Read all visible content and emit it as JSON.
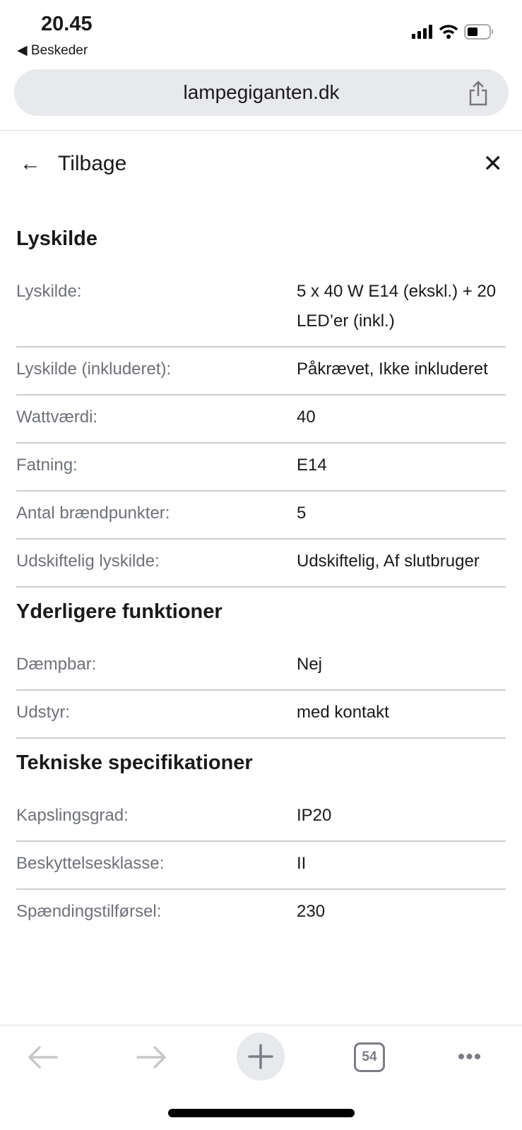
{
  "status": {
    "time": "20.45",
    "back_app": "Beskeder"
  },
  "browser": {
    "url": "lampegiganten.dk",
    "tabs_count": "54"
  },
  "nav": {
    "back_label": "Tilbage"
  },
  "sections": [
    {
      "title": "Lyskilde",
      "rows": [
        {
          "k": "Lyskilde:",
          "v": "5 x 40 W E14 (ekskl.) + 20 LED’er (inkl.)"
        },
        {
          "k": "Lyskilde (inkluderet):",
          "v": "Påkrævet, Ikke inkluderet"
        },
        {
          "k": "Wattværdi:",
          "v": "40"
        },
        {
          "k": "Fatning:",
          "v": "E14"
        },
        {
          "k": "Antal brændpunkter:",
          "v": "5"
        },
        {
          "k": "Udskiftelig lyskilde:",
          "v": "Udskiftelig, Af slutbruger"
        }
      ]
    },
    {
      "title": "Yderligere funktioner",
      "rows": [
        {
          "k": "Dæmpbar:",
          "v": "Nej"
        },
        {
          "k": "Udstyr:",
          "v": "med kontakt"
        }
      ]
    },
    {
      "title": "Tekniske specifikationer",
      "rows": [
        {
          "k": "Kapslingsgrad:",
          "v": "IP20"
        },
        {
          "k": "Beskyttelsesklasse:",
          "v": "II"
        },
        {
          "k": "Spændingstilførsel:",
          "v": "230"
        }
      ]
    }
  ]
}
